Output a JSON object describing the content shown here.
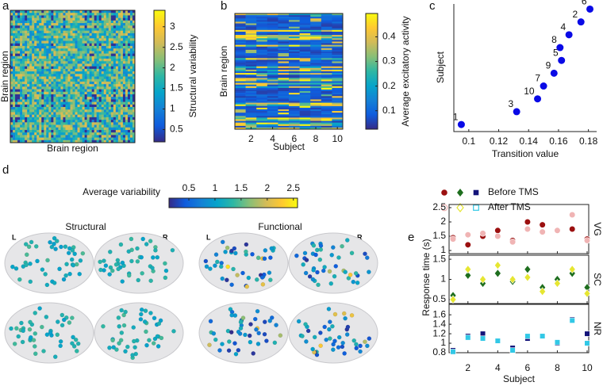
{
  "chart_data": [
    {
      "type": "heatmap",
      "label": "a",
      "xlabel": "Brain region",
      "ylabel": "Brain region",
      "colorbar": {
        "label": "Structural variability",
        "lim": [
          0.2,
          3.4
        ],
        "ticks": [
          0.5,
          1,
          1.5,
          2,
          2.5,
          3
        ]
      }
    },
    {
      "type": "heatmap",
      "label": "b",
      "xlabel": "Subject",
      "ylabel": "Brain region",
      "xlim": [
        0.5,
        10.5
      ],
      "xticks": [
        2,
        4,
        6,
        8,
        10
      ],
      "colorbar": {
        "label": "Average excitatory activity",
        "lim": [
          0.025,
          0.495
        ],
        "ticks": [
          0.1,
          0.2,
          0.3,
          0.4
        ]
      }
    },
    {
      "type": "scatter",
      "label": "c",
      "xlabel": "Transition value",
      "ylabel": "Subject",
      "color": "#0a0ae6",
      "x": [
        0.095,
        0.132,
        0.146,
        0.15,
        0.157,
        0.162,
        0.161,
        0.167,
        0.175,
        0.181
      ],
      "y": [
        1,
        2,
        3,
        4,
        5,
        6,
        7,
        8,
        9,
        10
      ],
      "point_labels": [
        "1",
        "3",
        "10",
        "7",
        "9",
        "5",
        "8",
        "4",
        "2",
        "6"
      ],
      "xlim": [
        0.09,
        0.1855
      ],
      "xticks": [
        0.1,
        0.12,
        0.14,
        0.16,
        0.18
      ],
      "ylim": [
        0.45,
        10.4
      ]
    },
    {
      "type": "brain",
      "label": "d",
      "colorbar": {
        "label": "Average variability",
        "lim": [
          0.12,
          2.58
        ],
        "ticks": [
          0.5,
          1,
          1.5,
          2,
          2.5
        ]
      },
      "views": [
        {
          "title": "Structural",
          "left": "L",
          "right": "R"
        },
        {
          "title": "Functional",
          "left": "L",
          "right": "R"
        }
      ]
    },
    {
      "type": "dot-panels",
      "label": "e",
      "xlabel": "Subject",
      "ylabel": "Response time (s)",
      "legend": [
        "Before TMS",
        "After TMS"
      ],
      "x": [
        1,
        2,
        3,
        4,
        5,
        6,
        7,
        8,
        9,
        10
      ],
      "xlim": [
        1,
        10
      ],
      "xticks": [
        2,
        4,
        6,
        8,
        10
      ],
      "panels": [
        {
          "name": "VG",
          "marker": "circle",
          "ylim": [
            0.89,
            2.61
          ],
          "yticks": [
            1,
            1.5,
            2,
            2.5
          ],
          "series": [
            {
              "color": "#9b1010",
              "values": [
                1.45,
                1.2,
                1.5,
                1.7,
                1.35,
                2.0,
                1.9,
                1.7,
                1.75,
                1.4
              ]
            },
            {
              "color": "#f0b4b4",
              "values": [
                1.4,
                1.55,
                1.6,
                1.5,
                1.3,
                1.75,
                1.65,
                1.7,
                2.25,
                1.35
              ]
            }
          ]
        },
        {
          "name": "SC",
          "marker": "diamond",
          "ylim": [
            0.4,
            1.6
          ],
          "yticks": [
            0.5,
            1,
            1.5
          ],
          "series": [
            {
              "color": "#1e6e1e",
              "values": [
                0.6,
                1.1,
                0.9,
                1.15,
                0.95,
                1.25,
                0.8,
                1.0,
                1.15,
                0.8
              ]
            },
            {
              "color": "#e6e632",
              "values": [
                0.5,
                1.25,
                1.0,
                1.35,
                1.0,
                1.05,
                0.7,
                0.9,
                1.25,
                0.65
              ]
            }
          ]
        },
        {
          "name": "NR",
          "marker": "square",
          "ylim": [
            0.8,
            1.82
          ],
          "yticks": [
            0.8,
            1,
            1.2,
            1.4,
            1.6
          ],
          "series": [
            {
              "color": "#14147a",
              "values": [
                0.85,
                1.15,
                1.2,
                1.05,
                0.9,
                1.1,
                1.15,
                1.0,
                1.5,
                1.2
              ]
            },
            {
              "color": "#32c8e6",
              "values": [
                0.82,
                1.12,
                1.1,
                1.05,
                0.85,
                1.15,
                1.15,
                1.02,
                1.48,
                1.0
              ]
            }
          ]
        }
      ]
    }
  ]
}
